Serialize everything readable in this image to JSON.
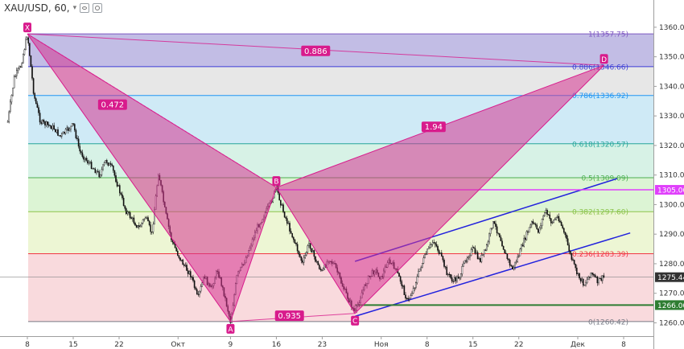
{
  "header": {
    "symbol": "XAU/USD, 60,",
    "caret": "▾"
  },
  "chart_data": {
    "type": "candlestick",
    "y_axis": {
      "range": [
        1255.5,
        1363.5
      ],
      "ticks": [
        1260,
        1270,
        1280,
        1290,
        1300,
        1310,
        1320,
        1330,
        1340,
        1350,
        1360
      ],
      "labels": [
        "1260.00",
        "1270.00",
        "1280.00",
        "1290.00",
        "1300.00",
        "1310.00",
        "1320.00",
        "1330.00",
        "1340.00",
        "1350.00",
        "1360.00"
      ]
    },
    "x_axis": {
      "ticks": [
        {
          "label": "8",
          "date": "2016-09-08"
        },
        {
          "label": "15",
          "date": "2016-09-15"
        },
        {
          "label": "22",
          "date": "2016-09-22"
        },
        {
          "label": "Окт",
          "date": "2016-10-01"
        },
        {
          "label": "9",
          "date": "2016-10-09"
        },
        {
          "label": "16",
          "date": "2016-10-16"
        },
        {
          "label": "23",
          "date": "2016-10-23"
        },
        {
          "label": "Ноя",
          "date": "2016-11-01"
        },
        {
          "label": "8",
          "date": "2016-11-08"
        },
        {
          "label": "15",
          "date": "2016-11-15"
        },
        {
          "label": "22",
          "date": "2016-11-22"
        },
        {
          "label": "Дек",
          "date": "2016-12-01"
        },
        {
          "label": "8",
          "date": "2016-12-08"
        }
      ]
    },
    "fib_levels": [
      {
        "ratio": 1,
        "price": 1357.75,
        "label": "1(1357.75)",
        "color": "#7e57c2",
        "fill": "#b7b2e0"
      },
      {
        "ratio": 0.886,
        "price": 1346.66,
        "label": "0.886(1346.66)",
        "color": "#3d3dd6",
        "fill": "#e3e3e3"
      },
      {
        "ratio": 0.786,
        "price": 1336.92,
        "label": "0.786(1336.92)",
        "color": "#2196f3",
        "fill": "#c7e6f5"
      },
      {
        "ratio": 0.618,
        "price": 1320.57,
        "label": "0.618(1320.57)",
        "color": "#26a69a",
        "fill": "#d0f0e2"
      },
      {
        "ratio": 0.5,
        "price": 1309.09,
        "label": "0.5(1309.09)",
        "color": "#4caf50",
        "fill": "#d6f2cc"
      },
      {
        "ratio": 0.382,
        "price": 1297.6,
        "label": "0.382(1297.60)",
        "color": "#8bc34a",
        "fill": "#eaf4cc"
      },
      {
        "ratio": 0.236,
        "price": 1283.39,
        "label": "0.236(1283.39)",
        "color": "#f23645",
        "fill": "#f8d3d7"
      },
      {
        "ratio": 0,
        "price": 1260.42,
        "label": "0(1260.42)",
        "color": "#787b86",
        "fill": null
      }
    ],
    "pattern": {
      "color": "#d81b8c",
      "fill": "#d6338f",
      "points": [
        {
          "name": "X",
          "date": "2016-09-08",
          "price": 1357.75
        },
        {
          "name": "A",
          "date": "2016-10-09",
          "price": 1260.42
        },
        {
          "name": "B",
          "date": "2016-10-16",
          "price": 1305.8
        },
        {
          "name": "C",
          "date": "2016-10-28",
          "price": 1263.2
        },
        {
          "name": "D",
          "date": "2016-12-05",
          "price": 1347.1
        }
      ],
      "ratios": [
        {
          "label": "0.886",
          "date": "2016-10-22",
          "price": 1352.0
        },
        {
          "label": "0.472",
          "date": "2016-09-21",
          "price": 1333.8
        },
        {
          "label": "1.94",
          "date": "2016-11-09",
          "price": 1326.3
        },
        {
          "label": "0.935",
          "date": "2016-10-18",
          "price": 1262.4
        }
      ]
    },
    "horizontal_lines": [
      {
        "price": 1305.0,
        "label": "1305.00",
        "color": "#e040fb",
        "width": 1.5,
        "from_date": "2016-10-16"
      },
      {
        "price": 1266.0,
        "label": "1266.00",
        "color": "#2e7d32",
        "width": 2,
        "from_date": "2016-10-28"
      }
    ],
    "last_price": {
      "price": 1275.44,
      "label": "1275.44",
      "color": "#333333"
    },
    "channel_lines": {
      "color": "#2222dd",
      "lines": [
        {
          "start": {
            "date": "2016-10-28",
            "price": 1280.8
          },
          "end": {
            "date": "2016-12-07",
            "price": 1308.8
          }
        },
        {
          "start": {
            "date": "2016-10-28",
            "price": 1262.2
          },
          "end": {
            "date": "2016-12-09",
            "price": 1290.4
          }
        }
      ]
    },
    "price_path": [
      [
        "2016-09-05",
        1328
      ],
      [
        "2016-09-06",
        1343
      ],
      [
        "2016-09-07",
        1347
      ],
      [
        "2016-09-08",
        1357.75
      ],
      [
        "2016-09-09",
        1337
      ],
      [
        "2016-09-10",
        1328
      ],
      [
        "2016-09-12",
        1326
      ],
      [
        "2016-09-13",
        1323
      ],
      [
        "2016-09-14",
        1325
      ],
      [
        "2016-09-15",
        1327
      ],
      [
        "2016-09-16",
        1318
      ],
      [
        "2016-09-17",
        1315
      ],
      [
        "2016-09-19",
        1310
      ],
      [
        "2016-09-20",
        1315
      ],
      [
        "2016-09-21",
        1312
      ],
      [
        "2016-09-22",
        1305
      ],
      [
        "2016-09-23",
        1298
      ],
      [
        "2016-09-25",
        1292
      ],
      [
        "2016-09-26",
        1296
      ],
      [
        "2016-09-27",
        1290
      ],
      [
        "2016-09-28",
        1311
      ],
      [
        "2016-09-29",
        1298
      ],
      [
        "2016-09-30",
        1288
      ],
      [
        "2016-10-01",
        1283
      ],
      [
        "2016-10-02",
        1279
      ],
      [
        "2016-10-03",
        1276
      ],
      [
        "2016-10-04",
        1268
      ],
      [
        "2016-10-05",
        1276
      ],
      [
        "2016-10-06",
        1271
      ],
      [
        "2016-10-07",
        1278
      ],
      [
        "2016-10-08",
        1270
      ],
      [
        "2016-10-09",
        1260.42
      ],
      [
        "2016-10-10",
        1276
      ],
      [
        "2016-10-11",
        1280
      ],
      [
        "2016-10-12",
        1286
      ],
      [
        "2016-10-13",
        1292
      ],
      [
        "2016-10-14",
        1296
      ],
      [
        "2016-10-15",
        1300
      ],
      [
        "2016-10-16",
        1305.8
      ],
      [
        "2016-10-17",
        1298
      ],
      [
        "2016-10-18",
        1292
      ],
      [
        "2016-10-19",
        1286
      ],
      [
        "2016-10-20",
        1280
      ],
      [
        "2016-10-21",
        1287
      ],
      [
        "2016-10-22",
        1281
      ],
      [
        "2016-10-23",
        1277
      ],
      [
        "2016-10-24",
        1282
      ],
      [
        "2016-10-25",
        1279
      ],
      [
        "2016-10-26",
        1273
      ],
      [
        "2016-10-27",
        1268
      ],
      [
        "2016-10-28",
        1263.2
      ],
      [
        "2016-10-29",
        1270
      ],
      [
        "2016-10-30",
        1275
      ],
      [
        "2016-10-31",
        1278
      ],
      [
        "2016-11-01",
        1275
      ],
      [
        "2016-11-02",
        1281
      ],
      [
        "2016-11-03",
        1279
      ],
      [
        "2016-11-04",
        1274
      ],
      [
        "2016-11-05",
        1267
      ],
      [
        "2016-11-06",
        1272
      ],
      [
        "2016-11-07",
        1279
      ],
      [
        "2016-11-08",
        1284
      ],
      [
        "2016-11-09",
        1288
      ],
      [
        "2016-11-10",
        1283
      ],
      [
        "2016-11-11",
        1277
      ],
      [
        "2016-11-12",
        1274
      ],
      [
        "2016-11-13",
        1276
      ],
      [
        "2016-11-14",
        1282
      ],
      [
        "2016-11-15",
        1285
      ],
      [
        "2016-11-16",
        1281
      ],
      [
        "2016-11-17",
        1285
      ],
      [
        "2016-11-18",
        1294
      ],
      [
        "2016-11-19",
        1290
      ],
      [
        "2016-11-20",
        1283
      ],
      [
        "2016-11-21",
        1278
      ],
      [
        "2016-11-22",
        1283
      ],
      [
        "2016-11-23",
        1289
      ],
      [
        "2016-11-24",
        1294
      ],
      [
        "2016-11-25",
        1291
      ],
      [
        "2016-11-26",
        1298
      ],
      [
        "2016-11-27",
        1294
      ],
      [
        "2016-11-28",
        1296
      ],
      [
        "2016-11-29",
        1290
      ],
      [
        "2016-11-30",
        1282
      ],
      [
        "2016-12-01",
        1276
      ],
      [
        "2016-12-02",
        1273
      ],
      [
        "2016-12-03",
        1277
      ],
      [
        "2016-12-04",
        1274
      ],
      [
        "2016-12-05",
        1275.44
      ]
    ]
  }
}
